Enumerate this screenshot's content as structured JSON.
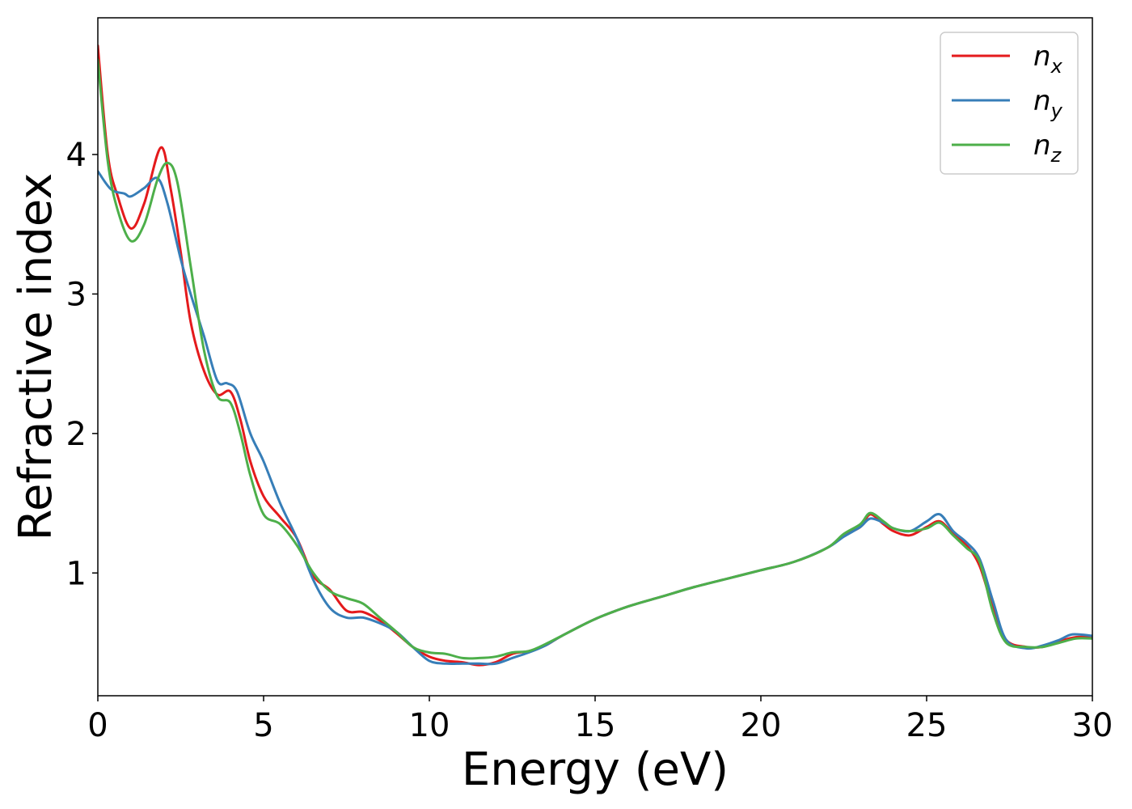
{
  "chart_data": {
    "type": "line",
    "xlabel": "Energy (eV)",
    "ylabel": "Refractive index",
    "xlim": [
      0,
      30
    ],
    "ylim": [
      0.12,
      4.98
    ],
    "xticks": [
      0,
      5,
      10,
      15,
      20,
      25,
      30
    ],
    "xtick_labels": [
      "0",
      "5",
      "10",
      "15",
      "20",
      "25",
      "30"
    ],
    "yticks": [
      1,
      2,
      3,
      4
    ],
    "ytick_labels": [
      "1",
      "2",
      "3",
      "4"
    ],
    "grid": false,
    "legend_position": "top-right",
    "series": [
      {
        "name": "n",
        "subscript": "x",
        "color": "#e41a1c",
        "x": [
          0,
          0.3,
          0.6,
          1.0,
          1.4,
          1.9,
          2.2,
          2.5,
          2.8,
          3.2,
          3.6,
          4.0,
          4.3,
          4.6,
          5.0,
          5.5,
          6.0,
          6.5,
          7.0,
          7.5,
          8.0,
          8.5,
          9.0,
          9.5,
          10.0,
          10.5,
          11.0,
          11.5,
          12.0,
          12.5,
          13.0,
          13.5,
          14.0,
          15.0,
          16.0,
          17.0,
          18.0,
          19.0,
          20.0,
          21.0,
          22.0,
          22.5,
          23.0,
          23.3,
          23.7,
          24.0,
          24.5,
          25.0,
          25.4,
          25.8,
          26.2,
          26.6,
          27.0,
          27.4,
          28.0,
          28.5,
          29.0,
          29.5,
          30.0
        ],
        "y": [
          4.78,
          4.0,
          3.7,
          3.47,
          3.65,
          4.05,
          3.75,
          3.3,
          2.8,
          2.45,
          2.28,
          2.3,
          2.1,
          1.8,
          1.55,
          1.4,
          1.25,
          0.98,
          0.88,
          0.73,
          0.72,
          0.66,
          0.57,
          0.47,
          0.4,
          0.37,
          0.36,
          0.34,
          0.36,
          0.42,
          0.44,
          0.48,
          0.55,
          0.67,
          0.76,
          0.83,
          0.9,
          0.96,
          1.02,
          1.08,
          1.18,
          1.27,
          1.33,
          1.42,
          1.35,
          1.3,
          1.27,
          1.33,
          1.37,
          1.28,
          1.2,
          1.05,
          0.75,
          0.52,
          0.47,
          0.47,
          0.51,
          0.54,
          0.54
        ]
      },
      {
        "name": "n",
        "subscript": "y",
        "color": "#377eb8",
        "x": [
          0,
          0.4,
          0.8,
          1.0,
          1.4,
          1.8,
          2.1,
          2.5,
          2.8,
          3.2,
          3.6,
          3.9,
          4.2,
          4.6,
          5.0,
          5.5,
          6.0,
          6.5,
          7.0,
          7.5,
          8.0,
          8.5,
          9.0,
          9.5,
          10.0,
          10.5,
          11.0,
          11.5,
          12.0,
          12.5,
          13.0,
          13.5,
          14.0,
          15.0,
          16.0,
          17.0,
          18.0,
          19.0,
          20.0,
          21.0,
          22.0,
          22.5,
          23.0,
          23.3,
          23.7,
          24.0,
          24.5,
          25.0,
          25.4,
          25.8,
          26.2,
          26.6,
          27.0,
          27.4,
          28.0,
          28.5,
          29.0,
          29.4,
          30.0
        ],
        "y": [
          3.88,
          3.75,
          3.72,
          3.7,
          3.76,
          3.83,
          3.65,
          3.25,
          3.0,
          2.7,
          2.38,
          2.36,
          2.3,
          2.0,
          1.8,
          1.5,
          1.25,
          0.95,
          0.75,
          0.68,
          0.68,
          0.64,
          0.58,
          0.47,
          0.37,
          0.35,
          0.35,
          0.35,
          0.35,
          0.39,
          0.43,
          0.48,
          0.55,
          0.67,
          0.76,
          0.83,
          0.9,
          0.96,
          1.02,
          1.08,
          1.18,
          1.26,
          1.33,
          1.39,
          1.36,
          1.32,
          1.3,
          1.37,
          1.42,
          1.3,
          1.22,
          1.1,
          0.8,
          0.52,
          0.46,
          0.48,
          0.52,
          0.56,
          0.55
        ]
      },
      {
        "name": "n",
        "subscript": "z",
        "color": "#4daf4a",
        "x": [
          0,
          0.3,
          0.6,
          1.0,
          1.4,
          1.8,
          2.1,
          2.4,
          2.8,
          3.2,
          3.6,
          4.0,
          4.3,
          4.6,
          5.0,
          5.5,
          6.0,
          6.5,
          7.0,
          7.5,
          8.0,
          8.5,
          9.0,
          9.5,
          10.0,
          10.5,
          11.0,
          11.5,
          12.0,
          12.5,
          13.0,
          13.5,
          14.0,
          15.0,
          16.0,
          17.0,
          18.0,
          19.0,
          20.0,
          21.0,
          22.0,
          22.5,
          23.0,
          23.3,
          23.7,
          24.0,
          24.5,
          25.0,
          25.4,
          25.8,
          26.2,
          26.6,
          27.0,
          27.4,
          28.0,
          28.5,
          29.0,
          29.5,
          30.0
        ],
        "y": [
          4.68,
          3.95,
          3.6,
          3.38,
          3.5,
          3.82,
          3.94,
          3.8,
          3.2,
          2.6,
          2.27,
          2.22,
          2.0,
          1.7,
          1.42,
          1.35,
          1.2,
          1.0,
          0.87,
          0.82,
          0.78,
          0.68,
          0.58,
          0.47,
          0.43,
          0.42,
          0.39,
          0.39,
          0.4,
          0.43,
          0.44,
          0.49,
          0.55,
          0.67,
          0.76,
          0.83,
          0.9,
          0.96,
          1.02,
          1.08,
          1.18,
          1.28,
          1.35,
          1.43,
          1.37,
          1.32,
          1.3,
          1.32,
          1.36,
          1.27,
          1.18,
          1.08,
          0.72,
          0.5,
          0.47,
          0.47,
          0.5,
          0.53,
          0.53
        ]
      }
    ]
  }
}
